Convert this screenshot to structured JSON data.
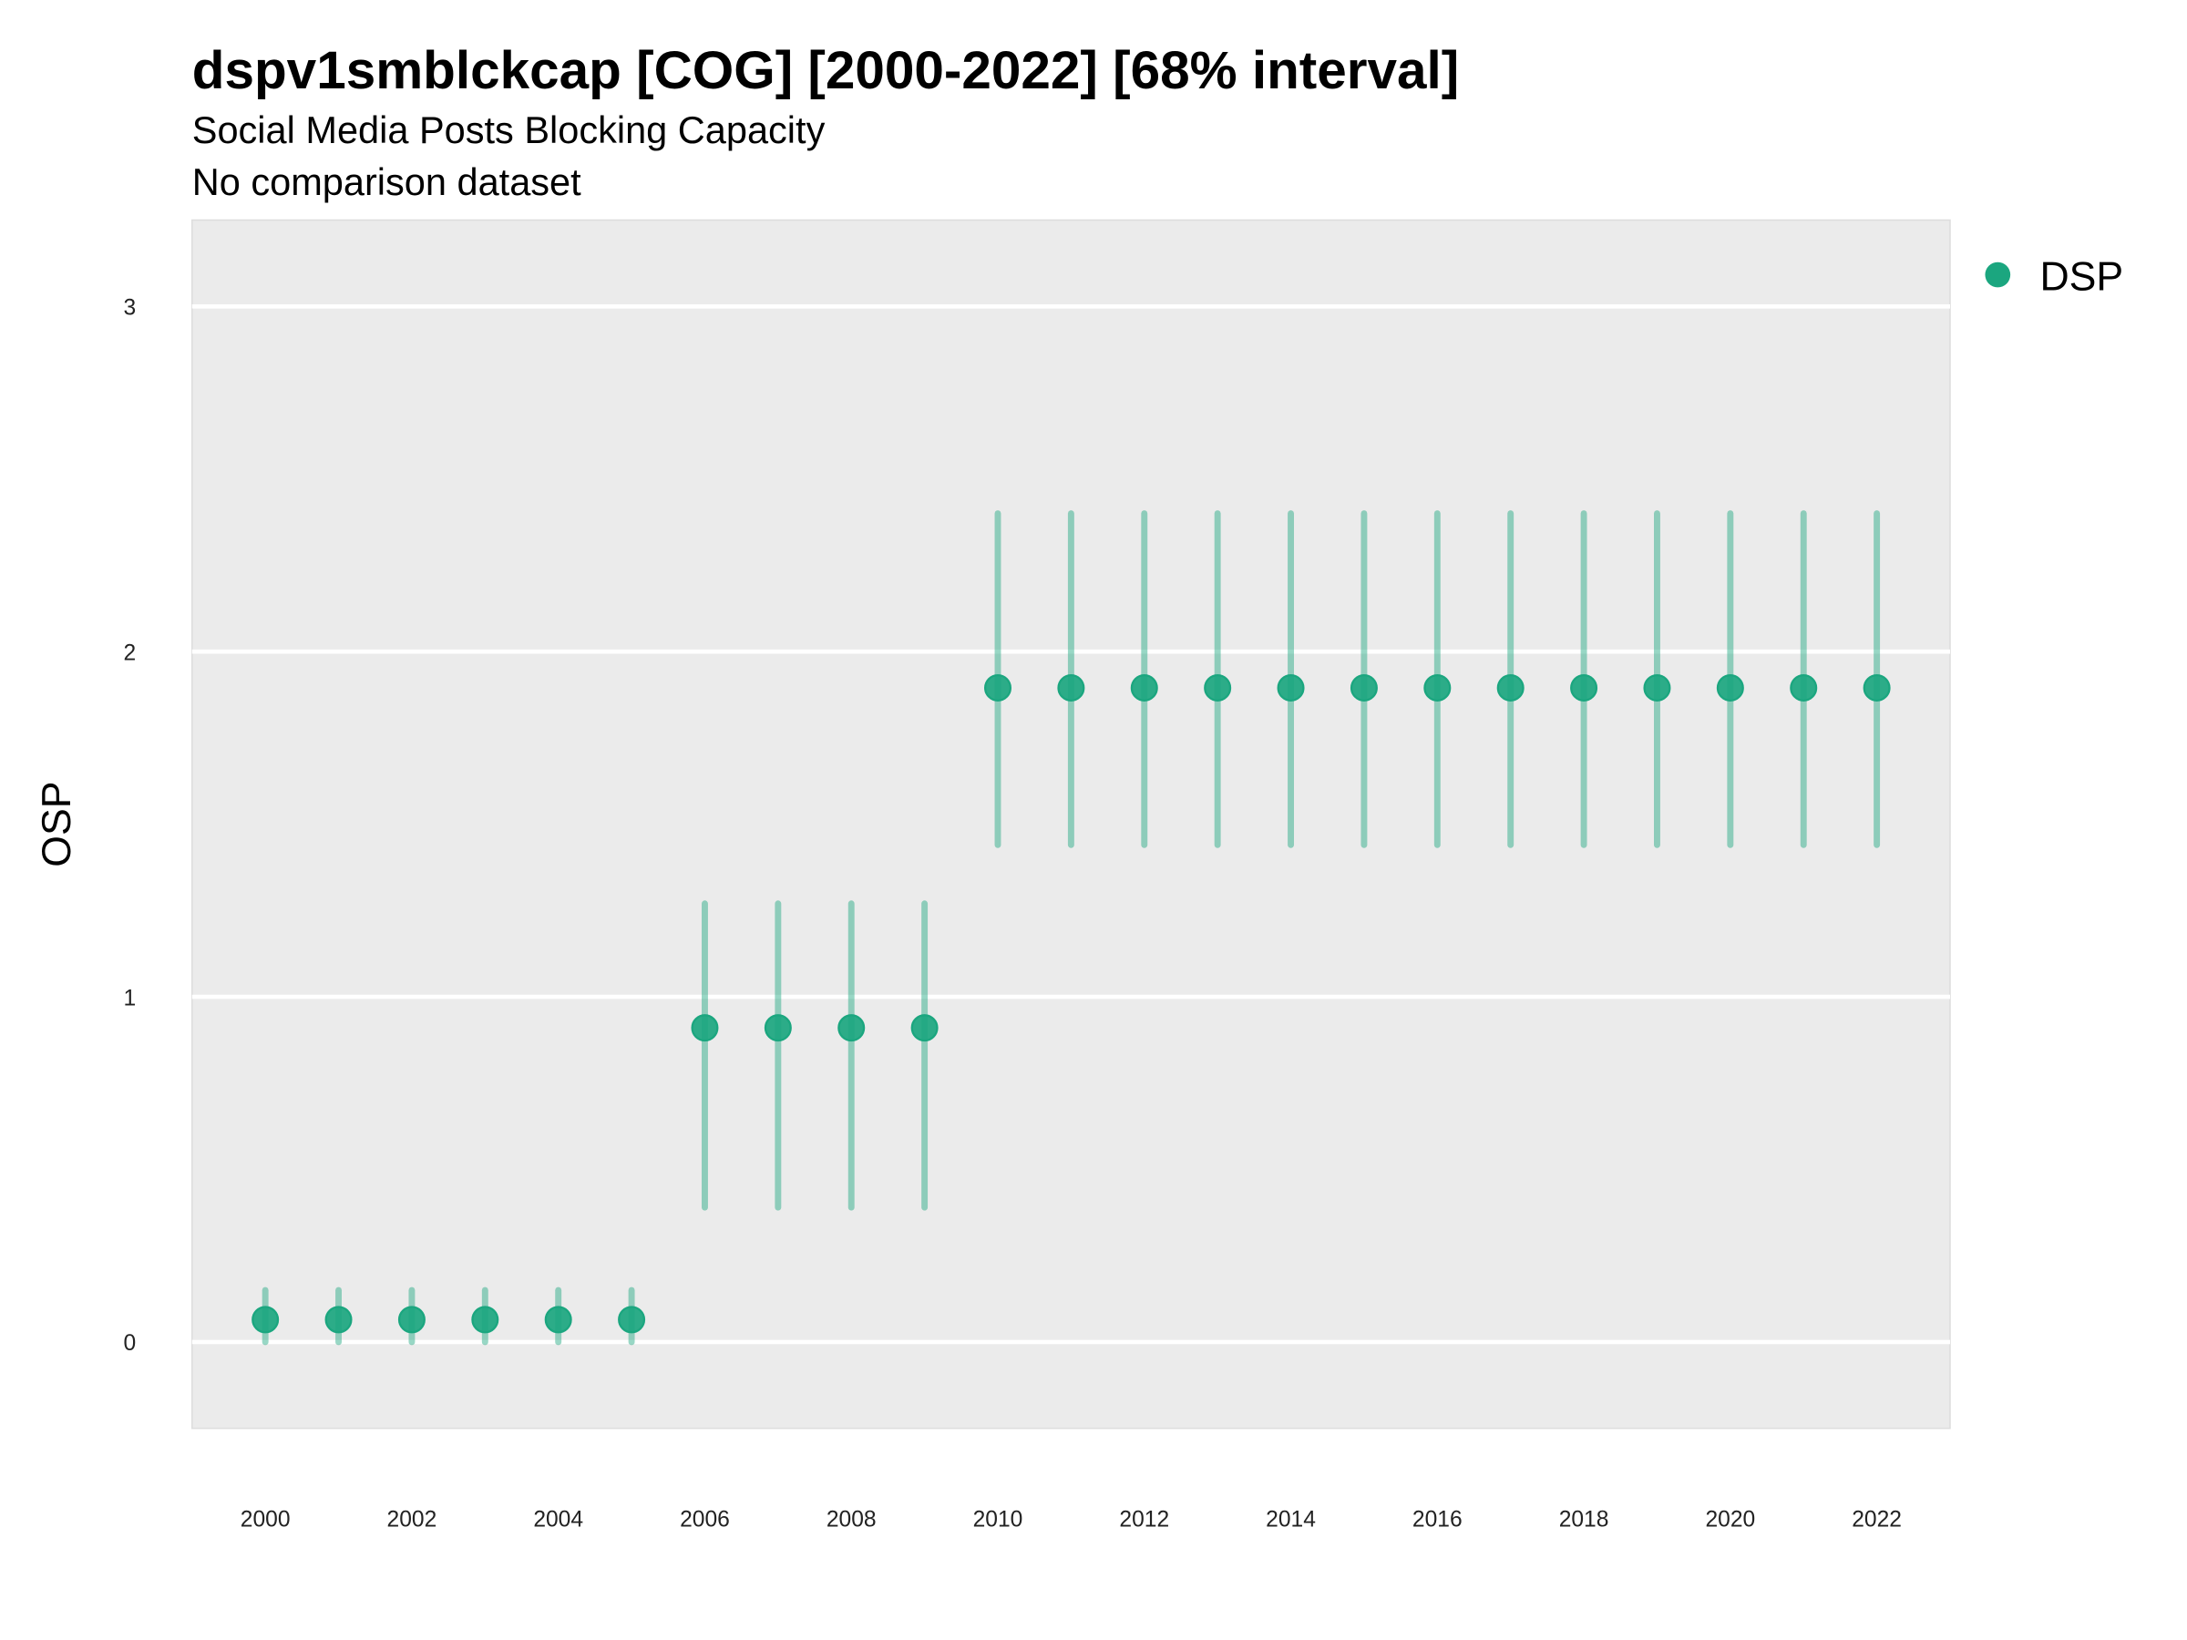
{
  "chart_data": {
    "type": "scatter",
    "title": "dspv1smblckcap [COG] [2000-2022] [68% interval]",
    "subtitle": "Social Media Posts Blocking Capacity",
    "subtitle2": "No comparison dataset",
    "xlabel": "",
    "ylabel": "OSP",
    "xlim": [
      1999,
      2023
    ],
    "ylim": [
      -0.25,
      3.25
    ],
    "x_ticks": [
      "2000",
      "2002",
      "2004",
      "2006",
      "2008",
      "2010",
      "2012",
      "2014",
      "2016",
      "2018",
      "2020",
      "2022"
    ],
    "y_ticks": [
      "0",
      "1",
      "2",
      "3"
    ],
    "grid": true,
    "legend_position": "right",
    "series": [
      {
        "name": "DSP",
        "color": "#1ba67f",
        "x": [
          2000,
          2001,
          2002,
          2003,
          2004,
          2005,
          2006,
          2007,
          2008,
          2009,
          2010,
          2011,
          2012,
          2013,
          2014,
          2015,
          2016,
          2017,
          2018,
          2019,
          2020,
          2021,
          2022
        ],
        "y": [
          0.065,
          0.065,
          0.065,
          0.065,
          0.065,
          0.065,
          0.91,
          0.91,
          0.91,
          0.91,
          1.895,
          1.895,
          1.895,
          1.895,
          1.895,
          1.895,
          1.895,
          1.895,
          1.895,
          1.895,
          1.895,
          1.895,
          1.895
        ],
        "lower": [
          0.0,
          0.0,
          0.0,
          0.0,
          0.0,
          0.0,
          0.39,
          0.39,
          0.39,
          0.39,
          1.44,
          1.44,
          1.44,
          1.44,
          1.44,
          1.44,
          1.44,
          1.44,
          1.44,
          1.44,
          1.44,
          1.44,
          1.44
        ],
        "upper": [
          0.15,
          0.15,
          0.15,
          0.15,
          0.15,
          0.15,
          1.27,
          1.27,
          1.27,
          1.27,
          2.4,
          2.4,
          2.4,
          2.4,
          2.4,
          2.4,
          2.4,
          2.4,
          2.4,
          2.4,
          2.4,
          2.4,
          2.4
        ]
      }
    ]
  }
}
